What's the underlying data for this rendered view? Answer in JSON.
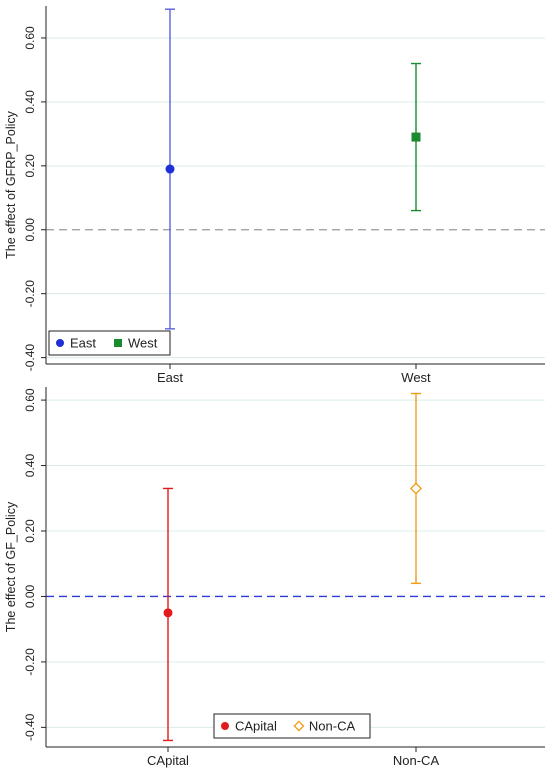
{
  "chart_data": [
    {
      "type": "errorbar",
      "ylabel": "The effect of GFRP_Policy",
      "categories": [
        "East",
        "West"
      ],
      "yticks": [
        "0.60",
        "0.40",
        "0.20",
        "0.00",
        "-0.20",
        "-0.40"
      ],
      "ylim": [
        -0.42,
        0.7
      ],
      "zero_line": {
        "style": "dashed",
        "color": "#9a9a9a"
      },
      "grid": true,
      "legend": {
        "placement": "bottom-left",
        "entries": [
          "East",
          "West"
        ]
      },
      "series": [
        {
          "name": "East",
          "color": "#1f2fd6",
          "marker": "circle",
          "bar_color": "#5b62e0",
          "estimate": 0.19,
          "lower": -0.31,
          "upper": 0.69
        },
        {
          "name": "West",
          "color": "#1a8a2e",
          "marker": "square",
          "bar_color": "#1a8a2e",
          "estimate": 0.29,
          "lower": 0.06,
          "upper": 0.52
        }
      ]
    },
    {
      "type": "errorbar",
      "ylabel": "The effect of GF_Policy",
      "categories": [
        "CApital",
        "Non-CA"
      ],
      "yticks": [
        "0.60",
        "0.40",
        "0.20",
        "0.00",
        "-0.20",
        "-0.40"
      ],
      "ylim": [
        -0.46,
        0.64
      ],
      "zero_line": {
        "style": "dashed",
        "color": "#2a3bd8"
      },
      "grid": true,
      "legend": {
        "placement": "bottom-center",
        "entries": [
          "CApital",
          "Non-CA"
        ]
      },
      "series": [
        {
          "name": "CApital",
          "color": "#e31a1c",
          "marker": "circle",
          "bar_color": "#e31a1c",
          "estimate": -0.05,
          "lower": -0.44,
          "upper": 0.33
        },
        {
          "name": "Non-CA",
          "color": "#f39c12",
          "marker": "diamond-open",
          "bar_color": "#f39c12",
          "estimate": 0.33,
          "lower": 0.04,
          "upper": 0.62
        }
      ]
    }
  ]
}
